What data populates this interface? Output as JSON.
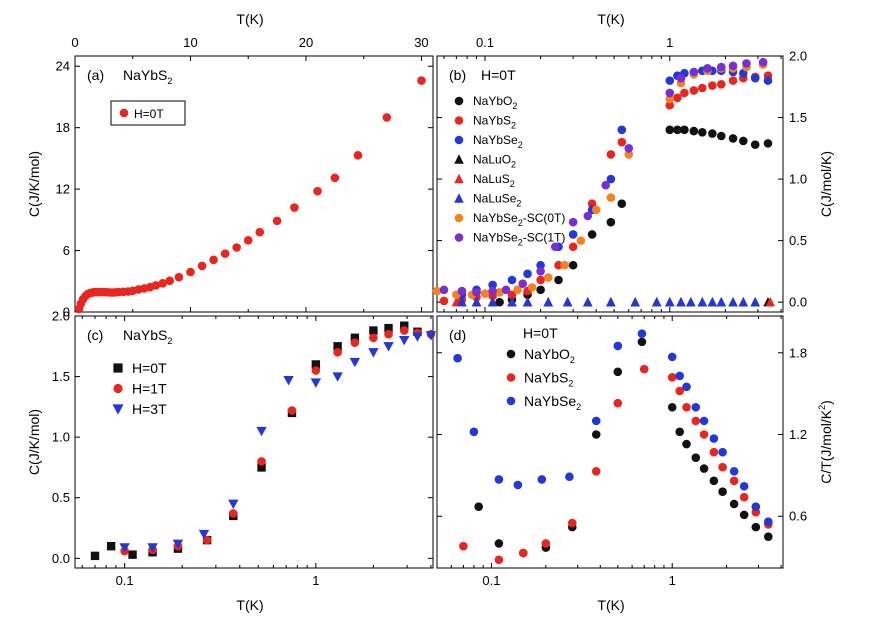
{
  "chart_data": [
    {
      "panel": "a",
      "type": "scatter",
      "tag": "(a)",
      "compound": "NaYbS",
      "compound_sub": "2",
      "xlabel": "T(K)",
      "ylabel": "C(J/K/mol)",
      "xscale": "linear",
      "xlim": [
        0,
        31
      ],
      "ylim": [
        0,
        25
      ],
      "xticks": [
        0,
        10,
        20,
        30
      ],
      "xtick_labels": [
        "0",
        "10",
        "20",
        "30"
      ],
      "yticks": [
        0,
        6,
        12,
        18,
        24
      ],
      "ytick_labels": [
        "0",
        "6",
        "12",
        "18",
        "24"
      ],
      "legend_position": "upper-left, boxed",
      "series": [
        {
          "name": "H=0T",
          "color": "#e8251f",
          "marker": "circle",
          "x": [
            0.35,
            0.5,
            0.7,
            0.9,
            1.1,
            1.3,
            1.5,
            1.7,
            1.9,
            2.1,
            2.3,
            2.6,
            2.9,
            3.2,
            3.5,
            3.8,
            4.2,
            4.6,
            5.0,
            5.5,
            6.0,
            6.5,
            7.0,
            7.6,
            8.2,
            9.0,
            10.0,
            11.0,
            12.0,
            13.0,
            14.0,
            15.0,
            16.0,
            17.5,
            19.0,
            21.0,
            22.5,
            24.5,
            27.0,
            30.0
          ],
          "values": [
            0.3,
            0.8,
            1.25,
            1.55,
            1.75,
            1.85,
            1.9,
            1.95,
            1.95,
            1.95,
            1.95,
            1.95,
            1.92,
            1.9,
            1.92,
            1.95,
            1.97,
            2.0,
            2.07,
            2.2,
            2.3,
            2.42,
            2.6,
            2.8,
            3.05,
            3.4,
            3.9,
            4.5,
            5.1,
            5.7,
            6.3,
            7.0,
            7.8,
            8.9,
            10.2,
            11.8,
            13.1,
            15.3,
            19.0,
            22.6
          ]
        }
      ]
    },
    {
      "panel": "b",
      "type": "scatter",
      "title": "H=0T",
      "tag": "(b)",
      "xlabel": "T(K)",
      "ylabel": "C(J/mol/K)",
      "xscale": "log",
      "xlim": [
        0.055,
        4.1
      ],
      "ylim": [
        -0.08,
        2.0
      ],
      "xticks": [
        0.1,
        1
      ],
      "xtick_labels": [
        "0.1",
        "1"
      ],
      "yticks": [
        0,
        0.5,
        1.0,
        1.5,
        2.0
      ],
      "ytick_labels": [
        "0.0",
        "0.5",
        "1.0",
        "1.5",
        "2.0"
      ],
      "legend_position": "left",
      "series": [
        {
          "name": "NaYbO",
          "sub": "2",
          "color": "#111111",
          "marker": "circle",
          "x": [
            0.12,
            0.14,
            0.17,
            0.2,
            0.25,
            0.3,
            0.38,
            0.48,
            0.55,
            1.0,
            1.1,
            1.2,
            1.35,
            1.5,
            1.7,
            1.9,
            2.2,
            2.5,
            2.9,
            3.4
          ],
          "values": [
            0.0,
            0.02,
            0.06,
            0.1,
            0.18,
            0.3,
            0.55,
            0.65,
            0.8,
            1.4,
            1.4,
            1.4,
            1.39,
            1.38,
            1.37,
            1.35,
            1.33,
            1.31,
            1.28,
            1.29
          ]
        },
        {
          "name": "NaYbS",
          "sub": "2",
          "color": "#e8251f",
          "marker": "circle",
          "x": [
            0.06,
            0.075,
            0.09,
            0.11,
            0.14,
            0.17,
            0.2,
            0.25,
            0.3,
            0.38,
            0.48,
            0.55,
            1.0,
            1.1,
            1.2,
            1.35,
            1.5,
            1.7,
            1.9,
            2.2,
            2.5,
            2.9,
            3.4
          ],
          "values": [
            0.01,
            0.02,
            0.04,
            0.05,
            0.06,
            0.09,
            0.18,
            0.3,
            0.45,
            0.8,
            1.2,
            1.3,
            1.6,
            1.66,
            1.7,
            1.72,
            1.74,
            1.76,
            1.77,
            1.8,
            1.82,
            1.83,
            1.84
          ]
        },
        {
          "name": "NaYbSe",
          "sub": "2",
          "color": "#2338d6",
          "marker": "circle",
          "x": [
            0.075,
            0.09,
            0.11,
            0.14,
            0.17,
            0.2,
            0.25,
            0.3,
            0.38,
            0.48,
            0.55,
            1.0,
            1.1,
            1.2,
            1.35,
            1.5,
            1.7,
            1.9,
            2.2,
            2.5,
            2.9,
            3.4
          ],
          "values": [
            0.06,
            0.1,
            0.14,
            0.18,
            0.23,
            0.3,
            0.45,
            0.55,
            0.75,
            1.0,
            1.4,
            1.8,
            1.84,
            1.86,
            1.87,
            1.88,
            1.88,
            1.88,
            1.87,
            1.86,
            1.82,
            1.8
          ]
        },
        {
          "name": "NaLuO",
          "sub": "2",
          "color": "#111111",
          "marker": "triangle",
          "x": [
            0.075,
            0.09,
            0.11,
            0.14,
            0.17,
            0.22,
            0.28,
            0.36,
            0.48,
            0.65,
            0.85,
            1.0,
            1.15,
            1.3,
            1.5,
            1.7,
            1.9,
            2.2,
            2.5,
            2.9,
            3.4
          ],
          "values": [
            0,
            0,
            0,
            0,
            0,
            0,
            0,
            0,
            0,
            0,
            0,
            0,
            0,
            0,
            0,
            0,
            0,
            0,
            0,
            0,
            0
          ]
        },
        {
          "name": "NaLuS",
          "sub": "2",
          "color": "#e8251f",
          "marker": "triangle",
          "x": [
            0.07,
            0.09,
            0.11,
            0.14,
            0.17,
            0.22,
            0.28,
            0.36,
            0.48,
            3.5
          ],
          "values": [
            0,
            0,
            0,
            0,
            0,
            0,
            0,
            0,
            0,
            0
          ]
        },
        {
          "name": "NaLuSe",
          "sub": "2",
          "color": "#2338d6",
          "marker": "triangle",
          "x": [
            0.075,
            0.09,
            0.11,
            0.14,
            0.17,
            0.22,
            0.28,
            0.36,
            0.48,
            0.65,
            0.85,
            1.0,
            1.15,
            1.3,
            1.5,
            1.7,
            1.9,
            2.2,
            2.5,
            2.9
          ],
          "values": [
            0,
            0,
            0,
            0,
            0,
            0,
            0,
            0,
            0,
            0,
            0,
            0,
            0,
            0,
            0,
            0,
            0,
            0,
            0,
            0
          ]
        },
        {
          "name": "NaYbSe",
          "sub": "2",
          "suffix": "-SC(0T)",
          "color": "#f58220",
          "marker": "circle",
          "x": [
            0.055,
            0.07,
            0.085,
            0.1,
            0.12,
            0.15,
            0.18,
            0.22,
            0.27,
            0.33,
            0.4,
            0.48,
            0.6,
            1.0,
            1.15,
            1.35,
            1.6,
            1.9,
            2.2,
            2.6,
            3.2
          ],
          "values": [
            0.09,
            0.06,
            0.06,
            0.07,
            0.08,
            0.1,
            0.12,
            0.2,
            0.3,
            0.5,
            0.75,
            0.85,
            1.2,
            1.65,
            1.78,
            1.85,
            1.88,
            1.9,
            1.9,
            1.91,
            1.93
          ]
        },
        {
          "name": "NaYbSe",
          "sub": "2",
          "suffix": "-SC(1T)",
          "color": "#7a2fd0",
          "marker": "circle",
          "x": [
            0.06,
            0.075,
            0.09,
            0.11,
            0.13,
            0.16,
            0.2,
            0.24,
            0.3,
            0.36,
            0.45,
            0.6,
            1.0,
            1.15,
            1.35,
            1.6,
            1.9,
            2.2,
            2.6,
            3.2
          ],
          "values": [
            0.1,
            0.09,
            0.08,
            0.09,
            0.1,
            0.15,
            0.25,
            0.45,
            0.65,
            0.7,
            0.95,
            1.25,
            1.7,
            1.82,
            1.87,
            1.9,
            1.91,
            1.92,
            1.94,
            1.95
          ]
        }
      ]
    },
    {
      "panel": "c",
      "type": "scatter",
      "tag": "(c)",
      "compound": "NaYbS",
      "compound_sub": "2",
      "xlabel": "T(K)",
      "ylabel": "C(J/K/mol)",
      "xscale": "log",
      "xlim": [
        0.055,
        4.1
      ],
      "ylim": [
        -0.08,
        2.0
      ],
      "xticks": [
        0.1,
        1
      ],
      "xtick_labels": [
        "0.1",
        "1"
      ],
      "yticks": [
        0,
        0.5,
        1.0,
        1.5,
        2.0
      ],
      "ytick_labels": [
        "0.0",
        "0.5",
        "1.0",
        "1.5",
        "2.0"
      ],
      "legend_position": "left",
      "series": [
        {
          "name": "H=0T",
          "color": "#111111",
          "marker": "square",
          "x": [
            0.07,
            0.085,
            0.11,
            0.14,
            0.19,
            0.27,
            0.37,
            0.52,
            0.75,
            1.0,
            1.3,
            1.6,
            2.0,
            2.4,
            2.9,
            3.4
          ],
          "values": [
            0.02,
            0.1,
            0.03,
            0.05,
            0.08,
            0.15,
            0.35,
            0.75,
            1.2,
            1.6,
            1.75,
            1.82,
            1.88,
            1.9,
            1.92,
            1.87
          ]
        },
        {
          "name": "H=1T",
          "color": "#e8251f",
          "marker": "circle",
          "x": [
            0.1,
            0.14,
            0.19,
            0.27,
            0.37,
            0.52,
            0.75,
            1.0,
            1.3,
            1.6,
            2.0,
            2.4,
            2.9,
            3.4,
            4.0
          ],
          "values": [
            0.06,
            0.07,
            0.1,
            0.15,
            0.37,
            0.8,
            1.22,
            1.55,
            1.7,
            1.78,
            1.82,
            1.85,
            1.88,
            1.86,
            1.85
          ]
        },
        {
          "name": "H=3T",
          "color": "#2338d6",
          "marker": "triangle-down",
          "x": [
            0.1,
            0.14,
            0.19,
            0.26,
            0.37,
            0.52,
            0.72,
            1.0,
            1.3,
            1.6,
            2.0,
            2.4,
            2.9,
            3.4,
            4.0
          ],
          "values": [
            0.09,
            0.09,
            0.12,
            0.2,
            0.45,
            1.05,
            1.47,
            1.45,
            1.5,
            1.62,
            1.7,
            1.75,
            1.8,
            1.83,
            1.84
          ]
        }
      ]
    },
    {
      "panel": "d",
      "type": "scatter",
      "title": "H=0T",
      "tag": "(d)",
      "xlabel": "T(K)",
      "ylabel": "C/T(J/mol/K",
      "ylabel_sup": "2",
      "ylabel_tail": ")",
      "xscale": "log",
      "xlim": [
        0.05,
        4.1
      ],
      "ylim": [
        0.22,
        2.07
      ],
      "xticks": [
        0.1,
        1
      ],
      "xtick_labels": [
        "0.1",
        "1"
      ],
      "yticks": [
        0.6,
        1.2,
        1.8
      ],
      "ytick_labels": [
        "0.6",
        "1.2",
        "1.8"
      ],
      "legend_position": "top-center",
      "series": [
        {
          "name": "NaYbO",
          "sub": "2",
          "color": "#111111",
          "marker": "circle",
          "x": [
            0.085,
            0.11,
            0.15,
            0.2,
            0.28,
            0.38,
            0.5,
            0.68,
            1.0,
            1.1,
            1.2,
            1.35,
            1.5,
            1.7,
            1.9,
            2.2,
            2.5,
            2.9,
            3.4
          ],
          "values": [
            0.67,
            0.4,
            0.33,
            0.37,
            0.52,
            1.2,
            1.66,
            1.88,
            1.4,
            1.22,
            1.13,
            1.03,
            0.95,
            0.86,
            0.78,
            0.69,
            0.61,
            0.52,
            0.45
          ]
        },
        {
          "name": "NaYbS",
          "sub": "2",
          "color": "#e8251f",
          "marker": "circle",
          "x": [
            0.07,
            0.11,
            0.15,
            0.2,
            0.28,
            0.38,
            0.5,
            0.7,
            1.0,
            1.1,
            1.2,
            1.35,
            1.5,
            1.7,
            1.9,
            2.2,
            2.5,
            2.9,
            3.4
          ],
          "values": [
            0.38,
            0.28,
            0.33,
            0.4,
            0.55,
            0.93,
            1.43,
            1.68,
            1.62,
            1.52,
            1.4,
            1.3,
            1.2,
            1.07,
            0.96,
            0.86,
            0.74,
            0.63,
            0.54
          ]
        },
        {
          "name": "NaYbSe",
          "sub": "2",
          "color": "#2338d6",
          "marker": "circle",
          "x": [
            0.065,
            0.08,
            0.11,
            0.14,
            0.19,
            0.27,
            0.38,
            0.5,
            0.68,
            1.0,
            1.1,
            1.2,
            1.35,
            1.5,
            1.7,
            1.9,
            2.2,
            2.5,
            2.9,
            3.4
          ],
          "values": [
            1.76,
            1.22,
            0.87,
            0.83,
            0.87,
            0.89,
            1.3,
            1.85,
            1.94,
            1.77,
            1.63,
            1.55,
            1.4,
            1.3,
            1.17,
            1.07,
            0.93,
            0.82,
            0.67,
            0.56
          ]
        }
      ]
    }
  ],
  "top_axes": {
    "left": {
      "label": "T(K)",
      "ticks": [
        0,
        10,
        20,
        30
      ],
      "tick_labels": [
        "0",
        "10",
        "20",
        "30"
      ]
    },
    "right": {
      "label": "T(K)",
      "ticks": [
        0.1,
        1
      ],
      "tick_labels": [
        "0.1",
        "1"
      ]
    }
  },
  "bottom_axis_label": "T(K)"
}
